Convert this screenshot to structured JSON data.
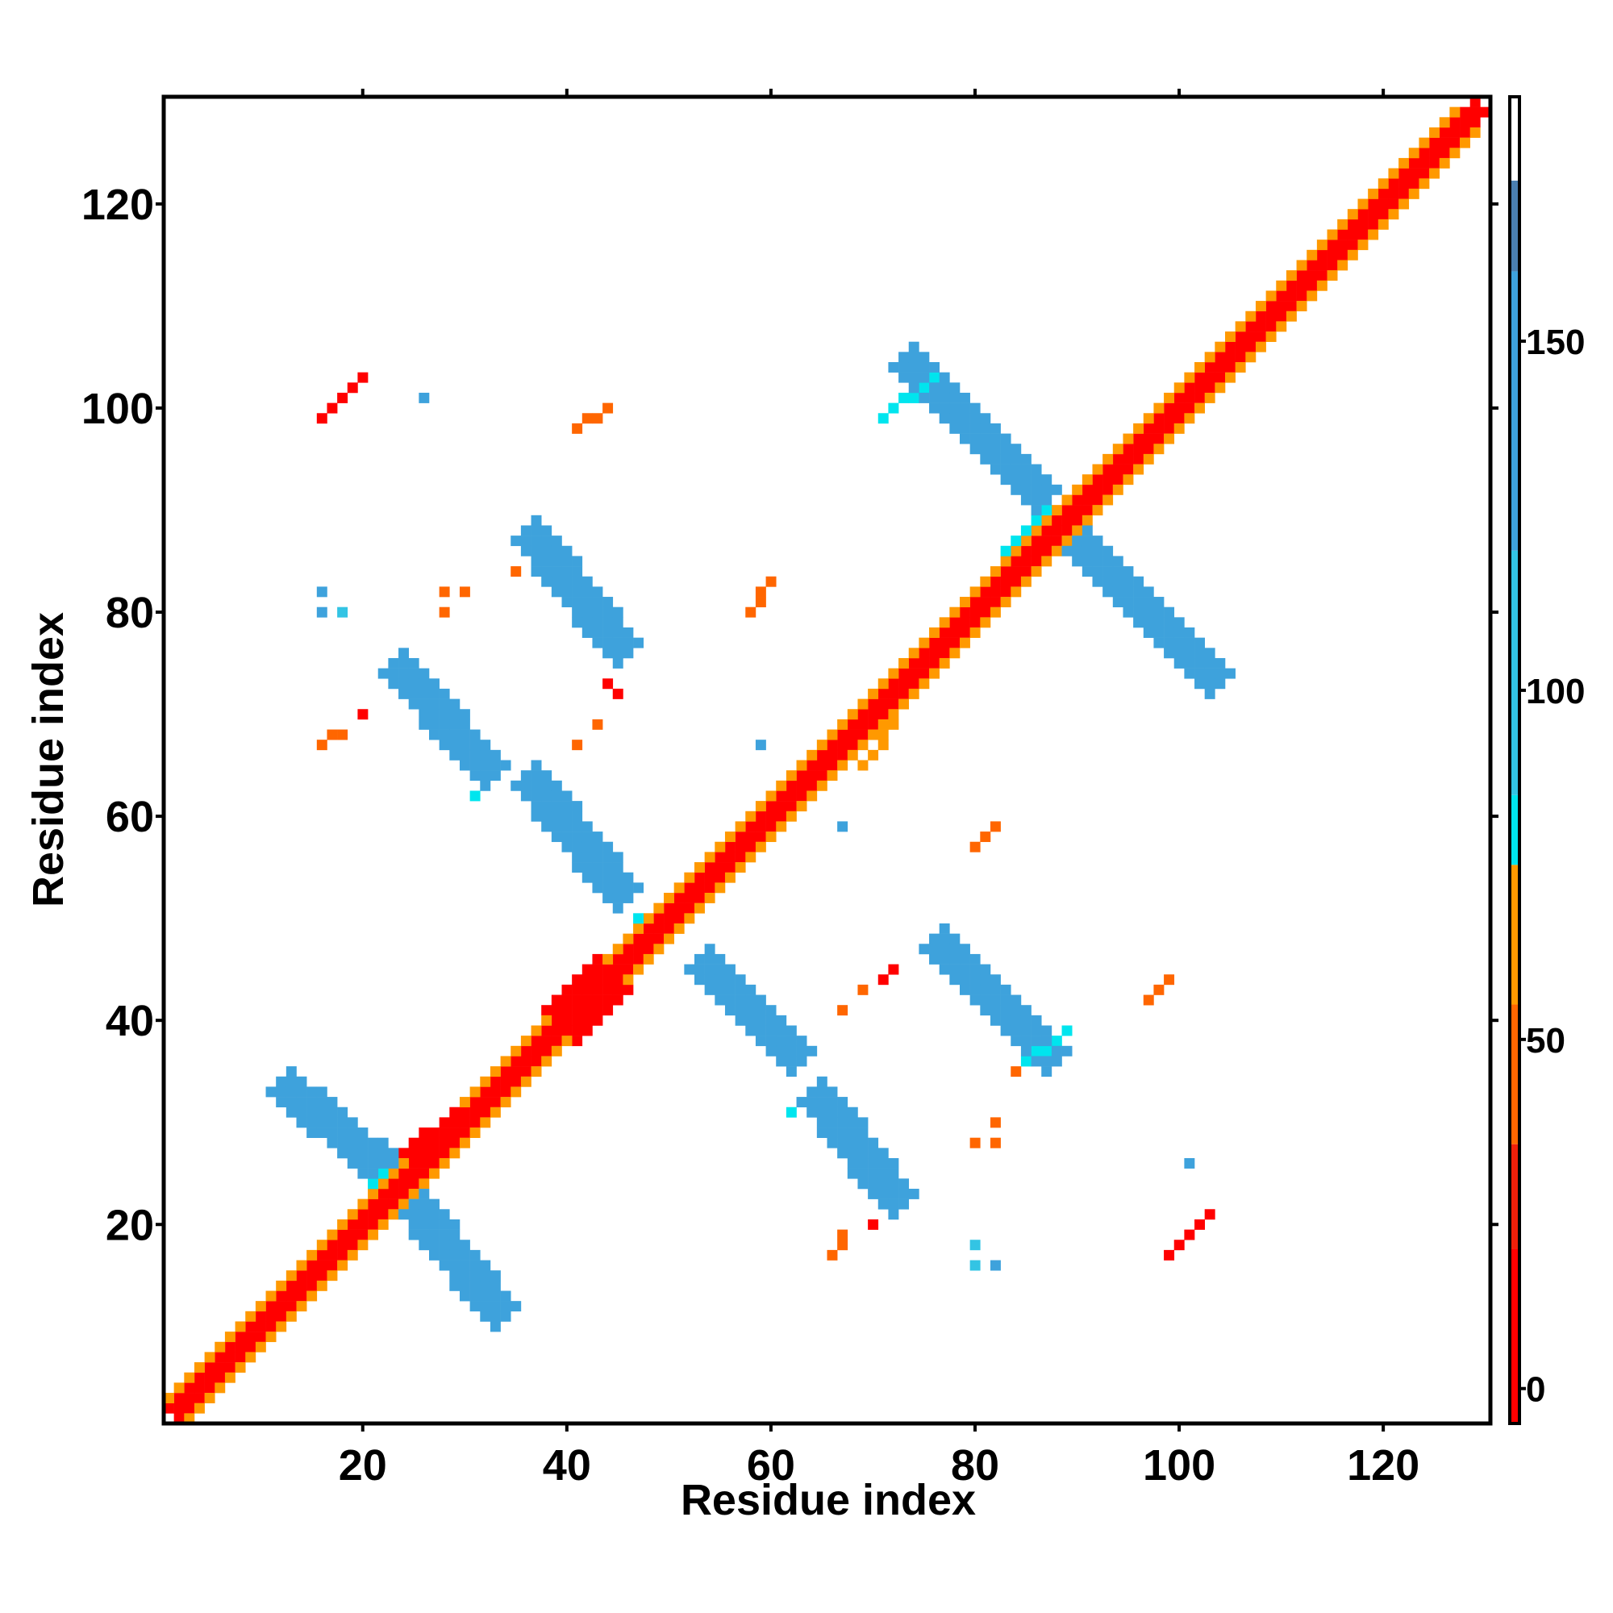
{
  "chart_data": {
    "type": "heatmap",
    "xlabel": "Residue index",
    "ylabel": "Residue index",
    "xlim": [
      0.5,
      130.5
    ],
    "ylim": [
      0.5,
      130.5
    ],
    "x_ticks": [
      20,
      40,
      60,
      80,
      100,
      120
    ],
    "y_ticks": [
      20,
      40,
      60,
      80,
      100,
      120
    ],
    "colorbar": {
      "range": [
        -5,
        185
      ],
      "ticks": [
        0,
        50,
        100,
        150
      ],
      "bands": [
        {
          "from": -5,
          "to": 20,
          "color": "#ff0000"
        },
        {
          "from": 20,
          "to": 35,
          "color": "#f0200a"
        },
        {
          "from": 35,
          "to": 55,
          "color": "#ff6600"
        },
        {
          "from": 55,
          "to": 75,
          "color": "#ff9900"
        },
        {
          "from": 75,
          "to": 85,
          "color": "#00e5ee"
        },
        {
          "from": 85,
          "to": 120,
          "color": "#33c4e4"
        },
        {
          "from": 120,
          "to": 160,
          "color": "#3ea2dc"
        },
        {
          "from": 160,
          "to": 173,
          "color": "#4a7fb0"
        },
        {
          "from": 173,
          "to": 185,
          "color": "#ffffff"
        }
      ]
    },
    "series": [
      {
        "name": "",
        "color": "#ff0000",
        "segments": [
          [
            2,
            2,
            129,
            129,
            0.9
          ],
          [
            25,
            27,
            31,
            31,
            0.9
          ],
          [
            38,
            38,
            45,
            45,
            0.9
          ],
          [
            58,
            58,
            64,
            64,
            0.9
          ],
          [
            66,
            66,
            72,
            72,
            0.9
          ],
          [
            76,
            76,
            86,
            86,
            0.9
          ],
          [
            98,
            98,
            108,
            108,
            0.9
          ],
          [
            16,
            99,
            20,
            103,
            0.8
          ],
          [
            39,
            41,
            43,
            45,
            1.2
          ],
          [
            41,
            39,
            45,
            43,
            1.2
          ],
          [
            99,
            17,
            103,
            21,
            0.8
          ]
        ]
      },
      {
        "name": "",
        "color": "#ff6600",
        "segments": [
          [
            2,
            3,
            128,
            129,
            0.8
          ],
          [
            3,
            2,
            129,
            128,
            0.8
          ],
          [
            41,
            98,
            44,
            100,
            0.6
          ],
          [
            58,
            80,
            60,
            83,
            0.6
          ],
          [
            16,
            67,
            18,
            68,
            0.5
          ],
          [
            80,
            57,
            82,
            59,
            0.6
          ],
          [
            97,
            42,
            99,
            44,
            0.6
          ],
          [
            66,
            17,
            67,
            19,
            0.6
          ]
        ]
      },
      {
        "name": "",
        "color": "#ff9900",
        "segments": [
          [
            1,
            3,
            127,
            129,
            0.7
          ],
          [
            3,
            1,
            129,
            127,
            0.7
          ],
          [
            33,
            34,
            38,
            38,
            0.8
          ],
          [
            46,
            44,
            49,
            47,
            0.7
          ],
          [
            70,
            71,
            74,
            74,
            0.8
          ],
          [
            69,
            65,
            72,
            69,
            0.7
          ]
        ]
      },
      {
        "name": "",
        "color": "#00e5ee",
        "segments": [
          [
            9,
            10,
            120,
            121,
            0.5
          ],
          [
            10,
            9,
            121,
            120,
            0.5
          ],
          [
            22,
            24,
            27,
            26,
            0.9
          ],
          [
            84,
            86,
            90,
            91,
            1.0
          ],
          [
            47,
            50,
            54,
            53,
            0.6
          ],
          [
            71,
            99,
            76,
            103,
            0.6
          ],
          [
            84,
            35,
            89,
            39,
            0.6
          ]
        ]
      },
      {
        "name": "",
        "color": "#3ea2dc",
        "segments": [
          [
            13,
            33,
            24,
            24,
            1.7
          ],
          [
            25,
            22,
            33,
            12,
            1.7
          ],
          [
            37,
            87,
            45,
            77,
            1.7
          ],
          [
            24,
            74,
            32,
            65,
            1.7
          ],
          [
            37,
            63,
            45,
            53,
            1.7
          ],
          [
            54,
            45,
            62,
            37,
            1.7
          ],
          [
            65,
            32,
            72,
            23,
            1.7
          ],
          [
            77,
            47,
            87,
            37,
            1.7
          ],
          [
            74,
            104,
            86,
            92,
            1.7
          ],
          [
            90,
            87,
            103,
            74,
            1.7
          ]
        ]
      }
    ],
    "blobs": [
      {
        "x": 71,
        "y": 44,
        "color": "#ff0000"
      },
      {
        "x": 72,
        "y": 45,
        "color": "#ff0000"
      },
      {
        "x": 44,
        "y": 73,
        "color": "#ff0000"
      },
      {
        "x": 45,
        "y": 72,
        "color": "#ff0000"
      },
      {
        "x": 28,
        "y": 82,
        "color": "#ff6600"
      },
      {
        "x": 30,
        "y": 82,
        "color": "#ff6600"
      },
      {
        "x": 28,
        "y": 80,
        "color": "#ff6600"
      },
      {
        "x": 82,
        "y": 28,
        "color": "#ff6600"
      },
      {
        "x": 80,
        "y": 28,
        "color": "#ff6600"
      },
      {
        "x": 82,
        "y": 30,
        "color": "#ff6600"
      },
      {
        "x": 16,
        "y": 82,
        "color": "#3ea2dc"
      },
      {
        "x": 16,
        "y": 80,
        "color": "#3ea2dc"
      },
      {
        "x": 18,
        "y": 80,
        "color": "#33c4e4"
      },
      {
        "x": 80,
        "y": 16,
        "color": "#33c4e4"
      },
      {
        "x": 82,
        "y": 16,
        "color": "#3ea2dc"
      },
      {
        "x": 80,
        "y": 18,
        "color": "#33c4e4"
      },
      {
        "x": 59,
        "y": 67,
        "color": "#3ea2dc"
      },
      {
        "x": 67,
        "y": 59,
        "color": "#3ea2dc"
      },
      {
        "x": 41,
        "y": 67,
        "color": "#ff6600"
      },
      {
        "x": 67,
        "y": 41,
        "color": "#ff6600"
      },
      {
        "x": 31,
        "y": 62,
        "color": "#00e5ee"
      },
      {
        "x": 62,
        "y": 31,
        "color": "#00e5ee"
      },
      {
        "x": 43,
        "y": 69,
        "color": "#ff6600"
      },
      {
        "x": 69,
        "y": 43,
        "color": "#ff6600"
      },
      {
        "x": 26,
        "y": 101,
        "color": "#3ea2dc"
      },
      {
        "x": 101,
        "y": 26,
        "color": "#3ea2dc"
      },
      {
        "x": 20,
        "y": 70,
        "color": "#ff0000"
      },
      {
        "x": 70,
        "y": 20,
        "color": "#ff0000"
      },
      {
        "x": 35,
        "y": 84,
        "color": "#ff6600"
      },
      {
        "x": 84,
        "y": 35,
        "color": "#ff6600"
      }
    ]
  }
}
